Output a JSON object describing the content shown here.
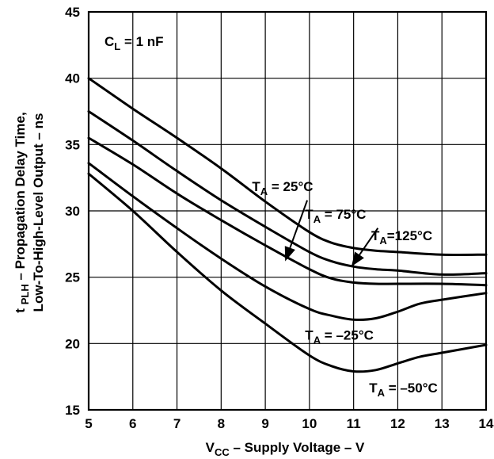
{
  "chart_data": {
    "type": "line",
    "xlabel": {
      "main": "V",
      "sub": "CC",
      "rest": " – Supply Voltage – V"
    },
    "ylabel": {
      "line1_prefix": "t ",
      "line1_sub": "PLH",
      "line1_rest": " – Propagation Delay Time,",
      "line2": "Low-To-High-Level Output – ns"
    },
    "xlim": [
      5,
      14
    ],
    "ylim": [
      15,
      45
    ],
    "x_ticks": [
      5,
      6,
      7,
      8,
      9,
      10,
      11,
      12,
      13,
      14
    ],
    "y_ticks": [
      15,
      20,
      25,
      30,
      35,
      40,
      45
    ],
    "grid": true,
    "condition": {
      "main": "C",
      "sub": "L",
      "rest": " = 1 nF"
    },
    "series": [
      {
        "name": "T_A = 125°C",
        "x": [
          5,
          6,
          7,
          8,
          9,
          10,
          10.5,
          11,
          11.5,
          12,
          13,
          14
        ],
        "y": [
          40,
          37.7,
          35.5,
          33.2,
          30.7,
          28.4,
          27.6,
          27.2,
          27.0,
          26.9,
          26.7,
          26.7
        ]
      },
      {
        "name": "T_A = 75°C",
        "x": [
          5,
          6,
          7,
          8,
          9,
          10,
          10.5,
          11,
          11.5,
          12,
          13,
          14
        ],
        "y": [
          37.5,
          35.3,
          33.0,
          30.8,
          28.8,
          26.9,
          26.2,
          25.8,
          25.6,
          25.5,
          25.2,
          25.3
        ]
      },
      {
        "name": "T_A = 25°C",
        "x": [
          5,
          6,
          7,
          8,
          9,
          10,
          10.5,
          11,
          11.5,
          12,
          13,
          14
        ],
        "y": [
          35.5,
          33.5,
          31.3,
          29.3,
          27.4,
          25.6,
          24.9,
          24.6,
          24.5,
          24.5,
          24.5,
          24.4
        ]
      },
      {
        "name": "T_A = –25°C",
        "x": [
          5,
          6,
          7,
          8,
          9,
          10,
          10.5,
          11,
          11.5,
          12,
          12.5,
          13,
          14
        ],
        "y": [
          33.6,
          31.1,
          28.7,
          26.4,
          24.3,
          22.6,
          22.1,
          21.8,
          21.9,
          22.4,
          23.0,
          23.3,
          23.8
        ]
      },
      {
        "name": "T_A = –50°C",
        "x": [
          5,
          6,
          7,
          8,
          9,
          10,
          10.5,
          11,
          11.5,
          12,
          12.5,
          13,
          14
        ],
        "y": [
          32.8,
          30.0,
          26.9,
          24.0,
          21.5,
          19.1,
          18.3,
          17.9,
          18.0,
          18.5,
          19.0,
          19.3,
          19.9
        ]
      }
    ],
    "annotations": [
      {
        "id": "ta125",
        "main": "T",
        "sub": "A",
        "rest": "=125°C",
        "x": 11.4,
        "y": 27.8
      },
      {
        "id": "ta25",
        "main": "T",
        "sub": "A",
        "rest": " = 25°C",
        "x": 8.7,
        "y": 31.5,
        "arrow_from": [
          9.95,
          30.8
        ],
        "arrow_to": [
          9.45,
          26.2
        ]
      },
      {
        "id": "ta75",
        "main": "T",
        "sub": "A",
        "rest": " = 75°C",
        "x": 9.9,
        "y": 29.4,
        "arrow_from": [
          11.55,
          28.7
        ],
        "arrow_to": [
          10.95,
          25.8
        ]
      },
      {
        "id": "tam25",
        "main": "T",
        "sub": "A",
        "rest": " = –25°C",
        "x": 9.9,
        "y": 20.3
      },
      {
        "id": "tam50",
        "main": "T",
        "sub": "A",
        "rest": " = –50°C",
        "x": 11.35,
        "y": 16.3
      }
    ]
  }
}
